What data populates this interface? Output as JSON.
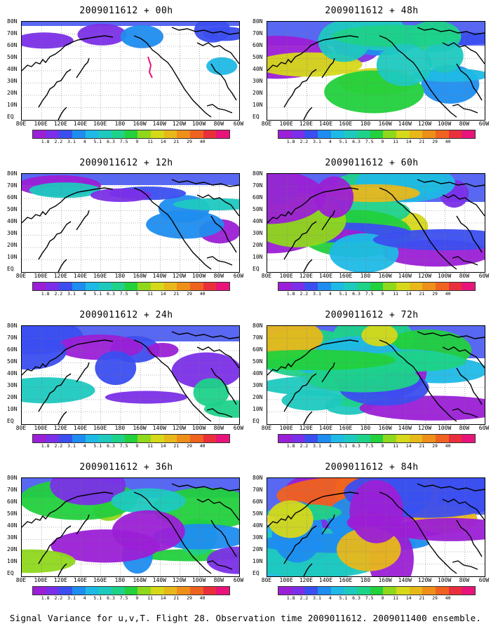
{
  "panels": [
    {
      "title": "2009011612 + 00h"
    },
    {
      "title": "2009011612 + 48h"
    },
    {
      "title": "2009011612 + 12h"
    },
    {
      "title": "2009011612 + 60h"
    },
    {
      "title": "2009011612 + 24h"
    },
    {
      "title": "2009011612 + 72h"
    },
    {
      "title": "2009011612 + 36h"
    },
    {
      "title": "2009011612 + 84h"
    }
  ],
  "lat_labels": [
    "80N",
    "70N",
    "60N",
    "50N",
    "40N",
    "30N",
    "20N",
    "10N",
    "EQ"
  ],
  "lon_labels": [
    "80E",
    "100E",
    "120E",
    "140E",
    "160E",
    "180",
    "160W",
    "140W",
    "120W",
    "100W",
    "80W",
    "60W"
  ],
  "colorbar": {
    "colors": [
      "#9b1fd6",
      "#7b2fe8",
      "#3b4ef0",
      "#1e8df0",
      "#1fb9e6",
      "#1ec9c0",
      "#1ed28a",
      "#22d13c",
      "#8fd81c",
      "#d6d81a",
      "#e8b81a",
      "#ee8f1a",
      "#f0621f",
      "#ea2f3c",
      "#e8147a"
    ],
    "labels": [
      "1.8",
      "2.2",
      "3.1",
      "4",
      "5.1",
      "6.3",
      "7.5",
      "9",
      "11",
      "14",
      "21",
      "29",
      "40"
    ]
  },
  "caption": "Signal Variance for u,v,T. Flight 28. Observation time 2009011612. 2009011400 ensemble."
}
